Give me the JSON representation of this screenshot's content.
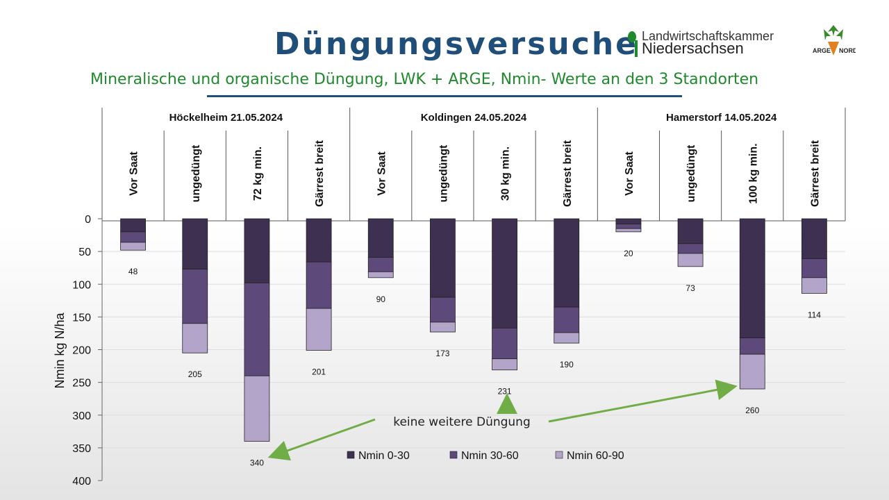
{
  "header": {
    "title": "Düngungsversuche",
    "subtitle": "Mineralische und organische Düngung, LWK + ARGE, Nmin- Werte an den 3 Standorten"
  },
  "logos": {
    "lwk_line1": "Landwirtschaftskammer",
    "lwk_line2": "Niedersachsen",
    "arge_left": "ARGE",
    "arge_right": "NORD"
  },
  "colors": {
    "nmin_0_30": "#3d3050",
    "nmin_30_60": "#5e4a7a",
    "nmin_60_90": "#b3a5c9",
    "annotation": "#70ad47",
    "title": "#1f4e79",
    "subtitle": "#1e8a2c"
  },
  "annotation": {
    "text": "keine weitere Düngung"
  },
  "chart_data": {
    "type": "bar",
    "stacked": true,
    "inverted_y": true,
    "ylabel": "Nmin kg N/ha",
    "ylim": [
      0,
      400
    ],
    "yticks": [
      0,
      50,
      100,
      150,
      200,
      250,
      300,
      350,
      400
    ],
    "groups": [
      {
        "name": "Höckelheim 21.05.2024",
        "categories": [
          "Vor Saat",
          "ungedüngt",
          "72 kg min.",
          "Gärrest breit"
        ]
      },
      {
        "name": "Koldingen 24.05.2024",
        "categories": [
          "Vor Saat",
          "ungedüngt",
          "30 kg min.",
          "Gärrest breit"
        ]
      },
      {
        "name": "Hamerstorf 14.05.2024",
        "categories": [
          "Vor Saat",
          "ungedüngt",
          "100 kg min.",
          "Gärrest breit"
        ]
      }
    ],
    "series": [
      {
        "name": "Nmin 0-30",
        "values": [
          20,
          77,
          98,
          66,
          59,
          120,
          167,
          135,
          8,
          38,
          182,
          61
        ]
      },
      {
        "name": "Nmin 30-60",
        "values": [
          16,
          83,
          142,
          71,
          22,
          38,
          47,
          39,
          7,
          15,
          25,
          29
        ]
      },
      {
        "name": "Nmin 60-90",
        "values": [
          12,
          45,
          100,
          64,
          9,
          15,
          17,
          16,
          5,
          20,
          53,
          24
        ]
      }
    ],
    "totals": [
      48,
      205,
      340,
      201,
      90,
      173,
      231,
      190,
      20,
      73,
      260,
      114
    ],
    "legend_position": "bottom-right"
  }
}
